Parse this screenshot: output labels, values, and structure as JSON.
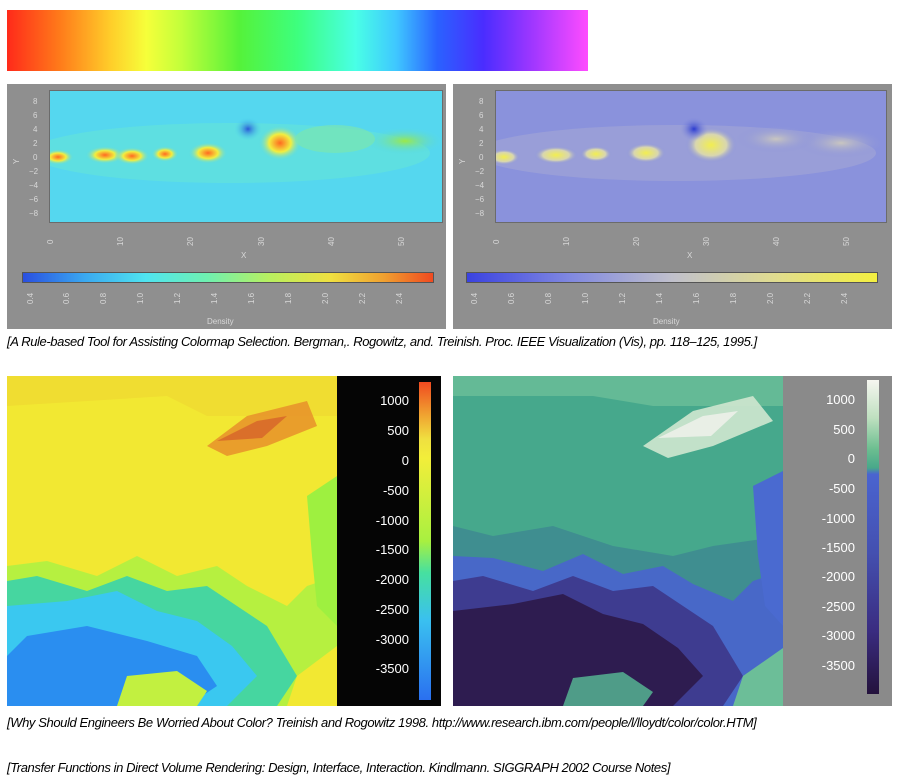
{
  "top_colorbar": {
    "icon": "rainbow-colormap"
  },
  "figure1": {
    "left": {
      "y_ticks": [
        "8",
        "6",
        "4",
        "2",
        "0",
        "−2",
        "−4",
        "−6",
        "−8"
      ],
      "x_ticks": [
        "0",
        "10",
        "20",
        "30",
        "40",
        "50"
      ],
      "x_label": "X",
      "y_label": "Y",
      "cb_ticks": [
        "0.4",
        "0.6",
        "0.8",
        "1.0",
        "1.2",
        "1.4",
        "1.6",
        "1.8",
        "2.0",
        "2.2",
        "2.4"
      ],
      "cb_label": "Density"
    },
    "right": {
      "y_ticks": [
        "8",
        "6",
        "4",
        "2",
        "0",
        "−2",
        "−4",
        "−6",
        "−8"
      ],
      "x_ticks": [
        "0",
        "10",
        "20",
        "30",
        "40",
        "50"
      ],
      "x_label": "X",
      "y_label": "Y",
      "cb_ticks": [
        "0.4",
        "0.6",
        "0.8",
        "1.0",
        "1.2",
        "1.4",
        "1.6",
        "1.8",
        "2.0",
        "2.2",
        "2.4"
      ],
      "cb_label": "Density"
    },
    "caption": "[A Rule-based Tool for Assisting Colormap Selection. Bergman,. Rogowitz, and. Treinish. Proc. IEEE Visualization (Vis), pp. 118–125, 1995.]"
  },
  "figure2": {
    "left_cbar_ticks": [
      "1000",
      "500",
      "0",
      "-500",
      "-1000",
      "-1500",
      "-2000",
      "-2500",
      "-3000",
      "-3500"
    ],
    "right_cbar_ticks": [
      "1000",
      "500",
      "0",
      "-500",
      "-1000",
      "-1500",
      "-2000",
      "-2500",
      "-3000",
      "-3500"
    ],
    "caption": "[Why Should Engineers Be Worried About Color? Treinish and Rogowitz 1998. http://www.research.ibm.com/people/l/lloydt/color/color.HTM]"
  },
  "caption3": "[Transfer Functions in Direct Volume Rendering: Design, Interface, Interaction. Kindlmann. SIGGRAPH 2002 Course Notes]"
}
